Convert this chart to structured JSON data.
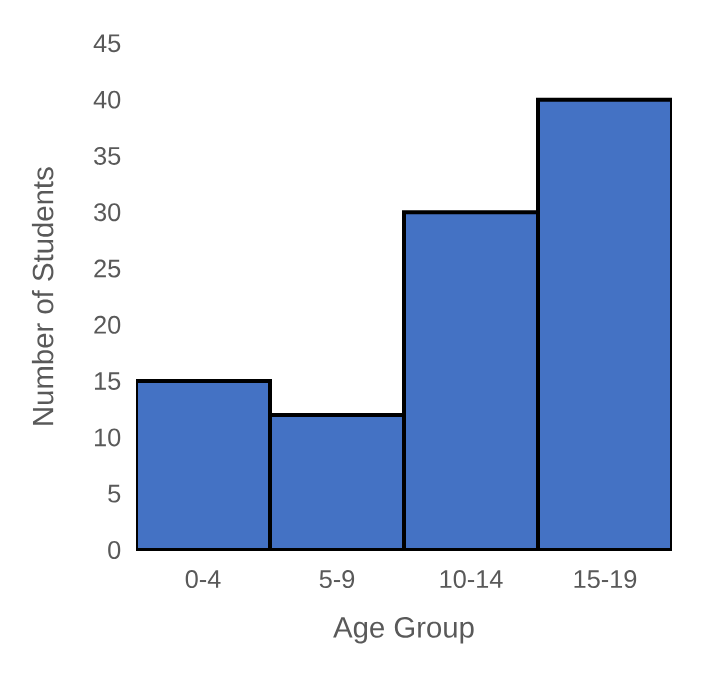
{
  "chart_data": {
    "type": "bar",
    "xlabel": "Age Group",
    "ylabel": "Number of Students",
    "categories": [
      "0-4",
      "5-9",
      "10-14",
      "15-19"
    ],
    "values": [
      15,
      12,
      30,
      40
    ],
    "color": "#4472c4",
    "ylim": [
      0,
      45
    ],
    "yticks": [
      0,
      5,
      10,
      15,
      20,
      25,
      30,
      35,
      40,
      45
    ]
  }
}
